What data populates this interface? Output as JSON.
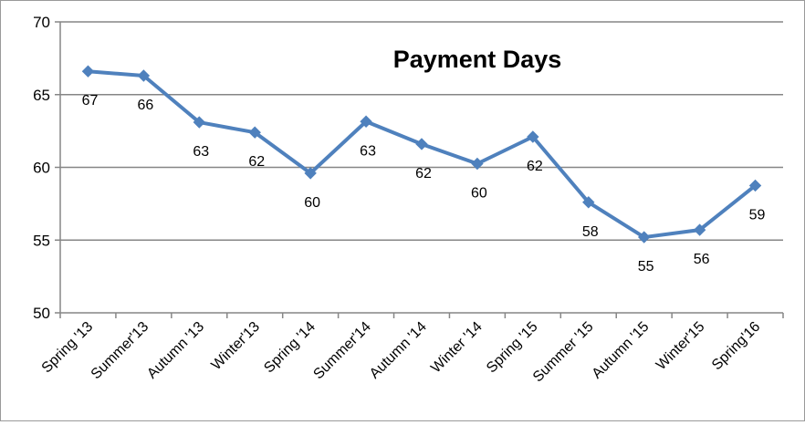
{
  "chart_data": {
    "type": "line",
    "title": "Payment Days",
    "categories": [
      "Spring '13",
      "Summer'13",
      "Autumn '13",
      "Winter'13",
      "Spring '14",
      "Summer'14",
      "Autumn '14",
      "Winter '14",
      "Spring '15",
      "Summer '15",
      "Autumn '15",
      "Winter'15",
      "Spring'16"
    ],
    "values": [
      66.6,
      66.3,
      63.1,
      62.4,
      59.6,
      63.15,
      61.6,
      60.25,
      62.1,
      57.6,
      55.2,
      55.7,
      58.75
    ],
    "data_labels": [
      "67",
      "66",
      "63",
      "62",
      "60",
      "63",
      "62",
      "60",
      "62",
      "58",
      "55",
      "56",
      "59"
    ],
    "ylim": [
      50,
      70
    ],
    "yticks": [
      "50",
      "55",
      "60",
      "65",
      "70"
    ],
    "grid": true,
    "legend": "none",
    "colors": {
      "line": "#4f81bd",
      "grid": "#868686",
      "axis": "#868686"
    }
  }
}
